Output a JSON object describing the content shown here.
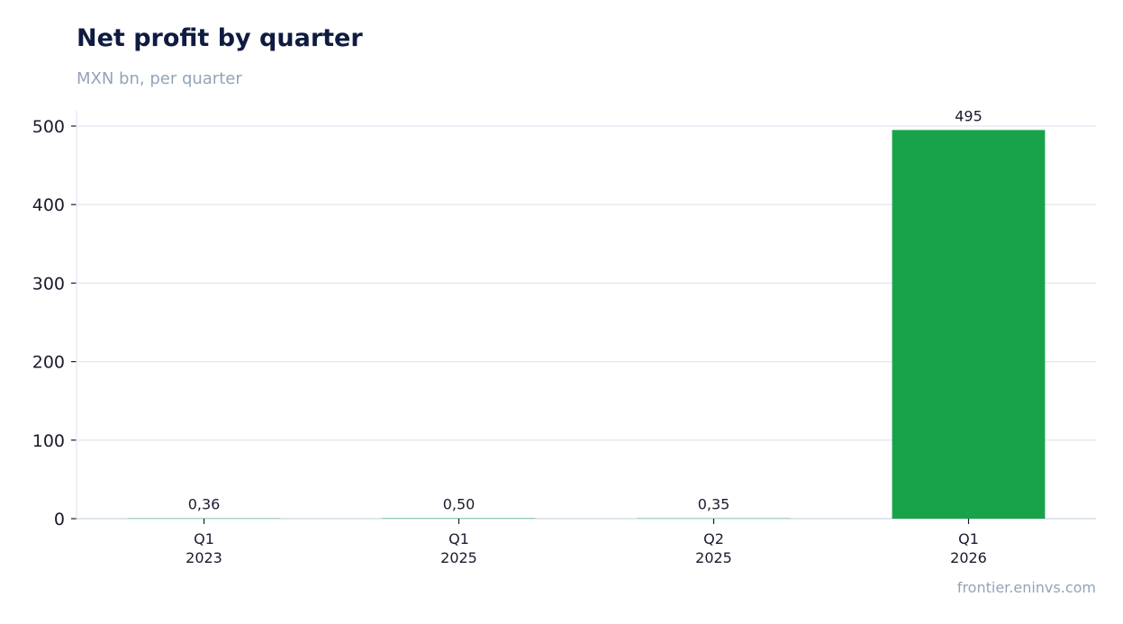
{
  "header": {
    "title": "Net profit by quarter",
    "subtitle": "MXN bn, per quarter"
  },
  "footer": {
    "source": "frontier.eninvs.com"
  },
  "colors": {
    "bar": "#18a34a",
    "grid": "#e2e8f0",
    "title": "#0f1b40",
    "muted": "#94a3b8"
  },
  "chart_data": {
    "type": "bar",
    "title": "Net profit by quarter",
    "subtitle": "MXN bn, per quarter",
    "xlabel": "",
    "ylabel": "",
    "categories": [
      [
        "Q1",
        "2023"
      ],
      [
        "Q1",
        "2025"
      ],
      [
        "Q2",
        "2025"
      ],
      [
        "Q1",
        "2026"
      ]
    ],
    "values": [
      0.36,
      0.5,
      0.35,
      495
    ],
    "data_labels": [
      "0,36",
      "0,50",
      "0,35",
      "495"
    ],
    "yticks": [
      0,
      100,
      200,
      300,
      400,
      500
    ],
    "ylim": [
      0,
      520
    ],
    "grid": true,
    "legend": "none"
  }
}
